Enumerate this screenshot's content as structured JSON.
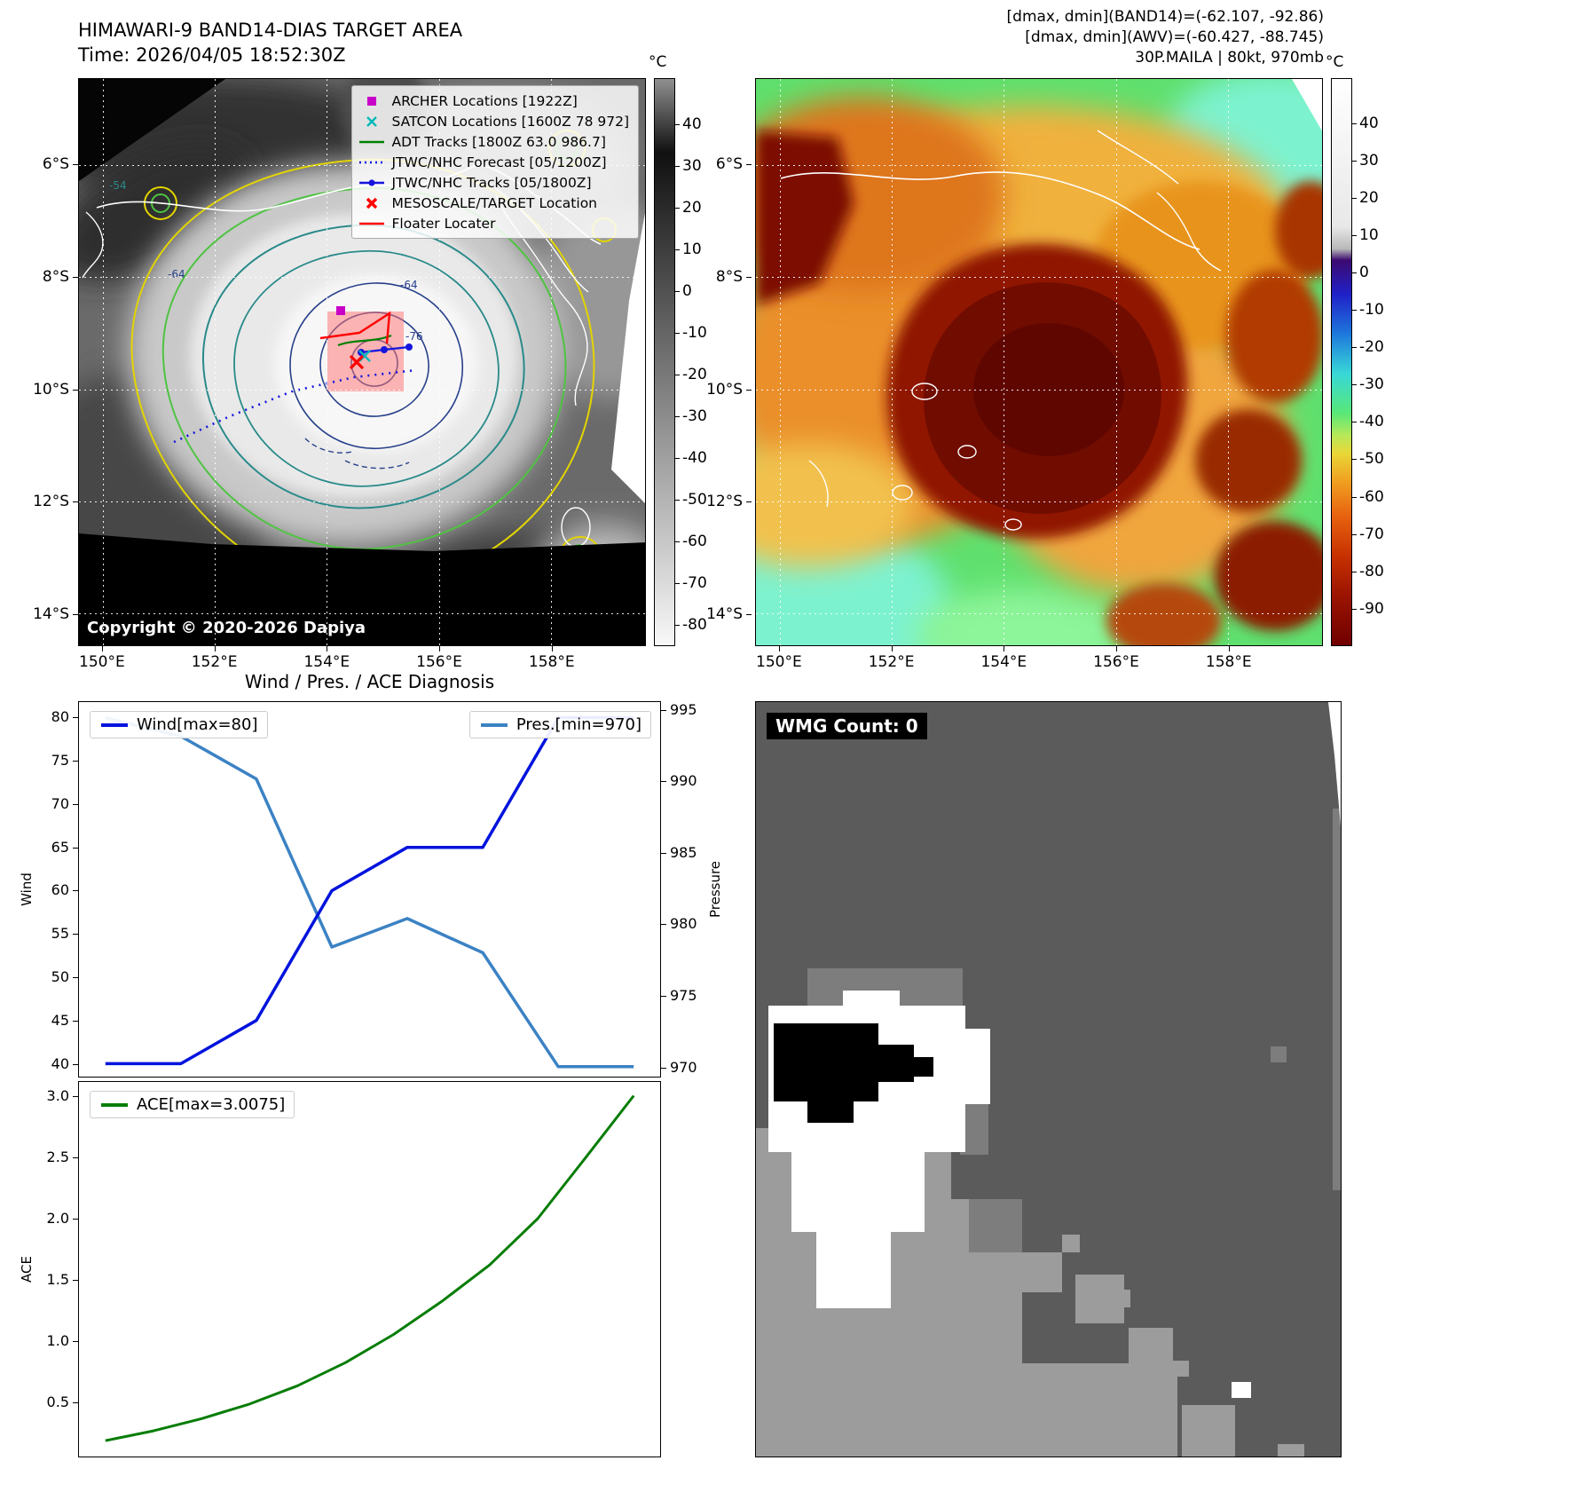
{
  "band14_panel": {
    "title": "HIMAWARI-9 BAND14-DIAS TARGET AREA",
    "subtitle": "Time: 2026/04/05 18:52:30Z",
    "copyright": "Copyright © 2020-2026 Dapiya",
    "colorbar_unit": "°C",
    "colorbar_ticks": [
      40,
      30,
      20,
      10,
      0,
      -10,
      -20,
      -30,
      -40,
      -50,
      -60,
      -70,
      -80
    ],
    "xtick_labels": [
      "150°E",
      "152°E",
      "154°E",
      "156°E",
      "158°E"
    ],
    "ytick_labels": [
      "6°S",
      "8°S",
      "10°S",
      "12°S",
      "14°S"
    ],
    "contour_labels": [
      "-54",
      "-64",
      "-64",
      "-76"
    ],
    "legend": [
      {
        "label": "ARCHER Locations [1922Z]",
        "marker": "square",
        "color": "#c800c8"
      },
      {
        "label": "SATCON Locations [1600Z 78 972]",
        "marker": "x",
        "color": "#00b8b8"
      },
      {
        "label": "ADT Tracks [1800Z 63.0 986.7]",
        "marker": "line",
        "color": "#008000"
      },
      {
        "label": "JTWC/NHC Forecast [05/1200Z]",
        "marker": "dotted",
        "color": "#1515dd"
      },
      {
        "label": "JTWC/NHC Tracks [05/1800Z]",
        "marker": "line-dot",
        "color": "#1515dd"
      },
      {
        "label": "MESOSCALE/TARGET Location",
        "marker": "x-bold",
        "color": "#ff0000"
      },
      {
        "label": "Floater Locater",
        "marker": "line",
        "color": "#ff0000"
      }
    ]
  },
  "awv_panel": {
    "info_lines": [
      "[dmax, dmin](BAND14)=(-62.107, -92.86)",
      "[dmax, dmin](AWV)=(-60.427, -88.745)",
      "30P.MAILA | 80kt, 970mb"
    ],
    "colorbar_unit": "°C",
    "colorbar_ticks": [
      40,
      30,
      20,
      10,
      0,
      -10,
      -20,
      -30,
      -40,
      -50,
      -60,
      -70,
      -80,
      -90
    ],
    "xtick_labels": [
      "150°E",
      "152°E",
      "154°E",
      "156°E",
      "158°E"
    ],
    "ytick_labels": [
      "6°S",
      "8°S",
      "10°S",
      "12°S",
      "14°S"
    ]
  },
  "wmg_panel": {
    "count_label": "WMG Count: 0"
  },
  "chart_data": [
    {
      "type": "line",
      "title": "Wind / Pres. / ACE Diagnosis",
      "x": [
        0,
        1,
        2,
        3,
        4,
        5,
        6,
        7
      ],
      "xlim": [
        -0.35,
        7.35
      ],
      "series": [
        {
          "name": "Wind[max=80]",
          "axis": "left",
          "color": "#0013dd",
          "values": [
            40,
            40,
            45,
            60,
            65,
            65,
            80,
            80
          ]
        },
        {
          "name": "Pres.[min=970]",
          "axis": "right",
          "color": "#3b82c4",
          "values": [
            994.5,
            993.2,
            990.2,
            978.4,
            980.4,
            978.0,
            970,
            970
          ]
        }
      ],
      "ylabel_left": "Wind",
      "yticks_left": [
        40,
        45,
        50,
        55,
        60,
        65,
        70,
        75,
        80
      ],
      "ylim_left": [
        38.5,
        81.8
      ],
      "ylabel_right": "Pressure",
      "yticks_right": [
        970,
        975,
        980,
        985,
        990,
        995
      ],
      "ylim_right": [
        969.3,
        995.6
      ]
    },
    {
      "type": "line",
      "x": [
        0,
        1,
        2,
        3,
        4,
        5,
        6,
        7,
        8,
        9,
        10,
        11
      ],
      "xlim": [
        -0.55,
        11.55
      ],
      "series": [
        {
          "name": "ACE[max=3.0075]",
          "color": "#067d06",
          "values": [
            0.18,
            0.26,
            0.36,
            0.48,
            0.63,
            0.82,
            1.05,
            1.32,
            1.62,
            2.0,
            2.5,
            3.0075
          ]
        }
      ],
      "ylabel": "ACE",
      "yticks": [
        0.5,
        1.0,
        1.5,
        2.0,
        2.5,
        3.0
      ],
      "ylim": [
        0.05,
        3.12
      ]
    }
  ]
}
